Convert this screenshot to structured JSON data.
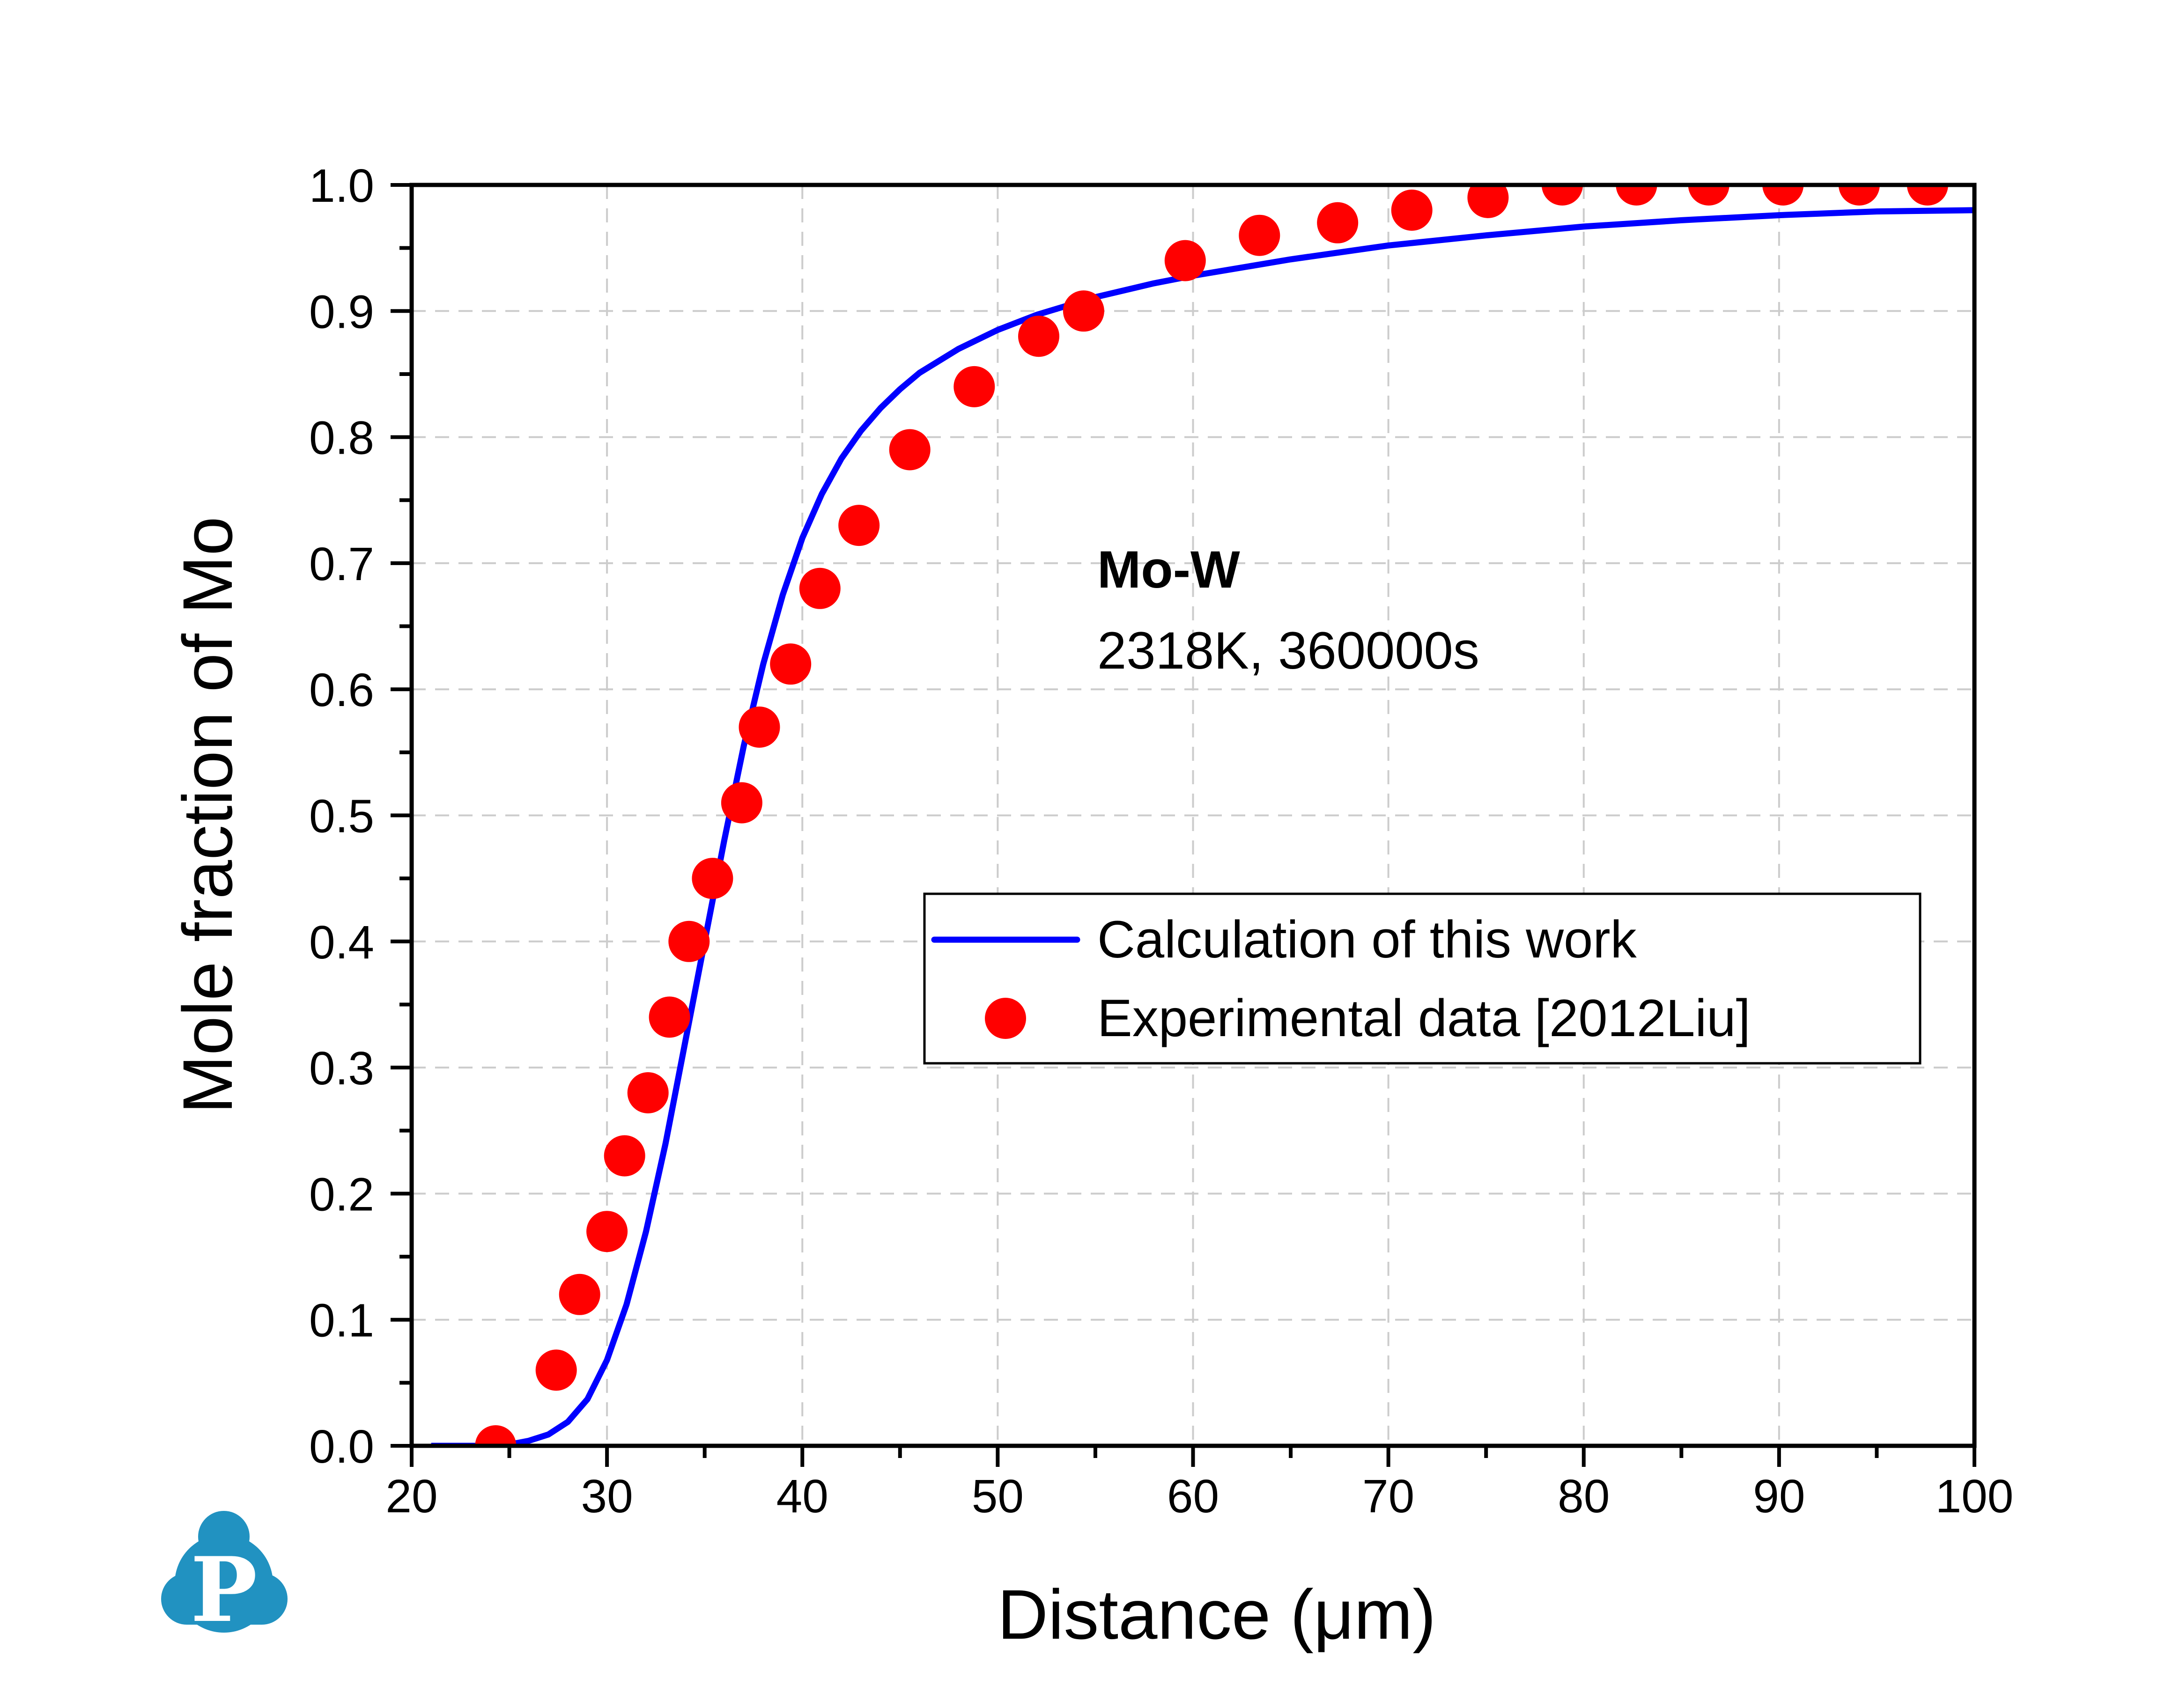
{
  "chart_data": {
    "type": "line",
    "xlabel": "Distance (μm)",
    "ylabel": "Mole fraction of Mo",
    "xlim": [
      20,
      100
    ],
    "ylim": [
      0.0,
      1.0
    ],
    "grid": true,
    "x_ticks": [
      "20",
      "30",
      "40",
      "50",
      "60",
      "70",
      "80",
      "90",
      "100"
    ],
    "y_ticks": [
      "0.0",
      "0.1",
      "0.2",
      "0.3",
      "0.4",
      "0.5",
      "0.6",
      "0.7",
      "0.8",
      "0.9",
      "1.0"
    ],
    "annotation": {
      "title": "Mo-W",
      "subtitle": "2318K, 360000s"
    },
    "legend_position": "center-right",
    "series": [
      {
        "name": "Calculation of this work",
        "kind": "line",
        "color": "#0000ff",
        "x": [
          21,
          22,
          23,
          24,
          25,
          26,
          27,
          28,
          29,
          30,
          31,
          32,
          33,
          34,
          35,
          36,
          37,
          38,
          39,
          40,
          41,
          42,
          43,
          44,
          45,
          46,
          48,
          50,
          52,
          55,
          58,
          60,
          65,
          70,
          75,
          80,
          85,
          90,
          95,
          100
        ],
        "y": [
          0.0,
          0.0,
          0.0,
          0.0,
          0.001,
          0.004,
          0.009,
          0.019,
          0.037,
          0.068,
          0.112,
          0.17,
          0.24,
          0.32,
          0.4,
          0.48,
          0.555,
          0.62,
          0.675,
          0.72,
          0.755,
          0.783,
          0.805,
          0.823,
          0.838,
          0.851,
          0.87,
          0.885,
          0.897,
          0.911,
          0.922,
          0.928,
          0.941,
          0.952,
          0.96,
          0.967,
          0.972,
          0.976,
          0.979,
          0.98
        ]
      },
      {
        "name": "Experimental data [2012Liu]",
        "kind": "scatter",
        "color": "#ff0000",
        "x": [
          24.3,
          27.4,
          28.6,
          30.0,
          30.9,
          32.1,
          33.2,
          34.2,
          35.4,
          36.9,
          37.8,
          39.4,
          40.9,
          42.9,
          45.5,
          48.8,
          52.1,
          54.4,
          59.6,
          63.4,
          67.4,
          71.2,
          75.1,
          78.9,
          82.7,
          86.4,
          90.2,
          94.1,
          97.6
        ],
        "y": [
          0.0,
          0.06,
          0.12,
          0.17,
          0.23,
          0.28,
          0.34,
          0.4,
          0.45,
          0.51,
          0.57,
          0.62,
          0.68,
          0.73,
          0.79,
          0.84,
          0.88,
          0.9,
          0.94,
          0.96,
          0.97,
          0.98,
          0.99,
          1.0,
          1.0,
          1.0,
          1.0,
          1.0,
          1.0
        ]
      }
    ]
  },
  "logo": {
    "letter": "P",
    "color": "#2192c1"
  }
}
